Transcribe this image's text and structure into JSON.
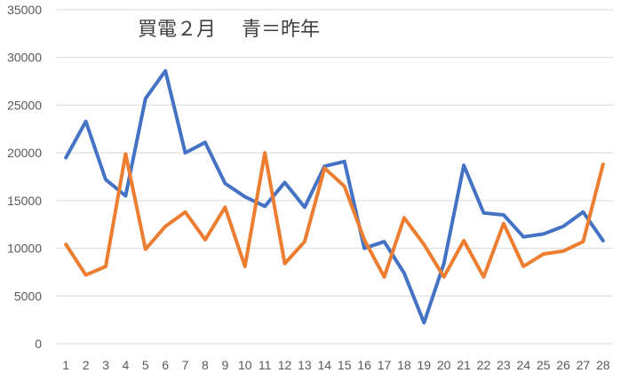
{
  "chart_data": {
    "type": "line",
    "title": "買電２月　 青＝昨年",
    "xlabel": "",
    "ylabel": "",
    "categories": [
      "1",
      "2",
      "3",
      "4",
      "5",
      "6",
      "7",
      "8",
      "9",
      "10",
      "11",
      "12",
      "13",
      "14",
      "15",
      "16",
      "17",
      "18",
      "19",
      "20",
      "21",
      "22",
      "23",
      "24",
      "25",
      "26",
      "27",
      "28"
    ],
    "ylim": [
      0,
      35000
    ],
    "yticks": [
      0,
      5000,
      10000,
      15000,
      20000,
      25000,
      30000,
      35000
    ],
    "grid": true,
    "legend": "none",
    "series": [
      {
        "color": "#4472c4",
        "values": [
          19500,
          23300,
          17200,
          15500,
          25700,
          28600,
          20000,
          21100,
          16800,
          15400,
          14400,
          16900,
          14300,
          18600,
          19100,
          10000,
          10700,
          7400,
          2200,
          8400,
          18700,
          13700,
          13500,
          11200,
          11500,
          12300,
          13800,
          10800
        ]
      },
      {
        "color": "#ed7d31",
        "values": [
          10400,
          7200,
          8100,
          19900,
          9900,
          12300,
          13800,
          10900,
          14300,
          8100,
          20000,
          8400,
          10700,
          18400,
          16500,
          10900,
          7000,
          13200,
          10400,
          7000,
          10800,
          7000,
          12600,
          8100,
          9400,
          9700,
          10700,
          18800
        ]
      }
    ]
  }
}
